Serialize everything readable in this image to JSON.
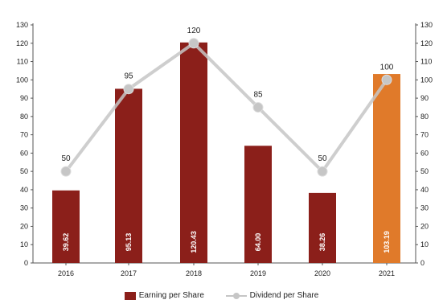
{
  "chart_data": {
    "type": "bar",
    "categories": [
      "2016",
      "2017",
      "2018",
      "2019",
      "2020",
      "2021"
    ],
    "series": [
      {
        "name": "Earning per Share",
        "kind": "bar",
        "values": [
          39.62,
          95.13,
          120.43,
          64.0,
          38.26,
          103.19
        ],
        "labels": [
          "39.62",
          "95.13",
          "120.43",
          "64.00",
          "38.26",
          "103.19"
        ],
        "colors": [
          "#8b1f1a",
          "#8b1f1a",
          "#8b1f1a",
          "#8b1f1a",
          "#8b1f1a",
          "#e07a2a"
        ]
      },
      {
        "name": "Dividend per Share",
        "kind": "line",
        "values": [
          50,
          95,
          120,
          85,
          50,
          100
        ],
        "labels": [
          "50",
          "95",
          "120",
          "85",
          "50",
          "100"
        ],
        "color": "#c6c6c6"
      }
    ],
    "yticks_left": [
      "0",
      "10",
      "20",
      "30",
      "40",
      "50",
      "60",
      "70",
      "80",
      "90",
      "100",
      "110",
      "120",
      "130"
    ],
    "yticks_right": [
      "0",
      "10",
      "20",
      "30",
      "40",
      "50",
      "60",
      "70",
      "80",
      "90",
      "100",
      "110",
      "120",
      "130"
    ],
    "ylim": [
      0,
      130
    ],
    "legend_position": "bottom",
    "grid": false
  }
}
